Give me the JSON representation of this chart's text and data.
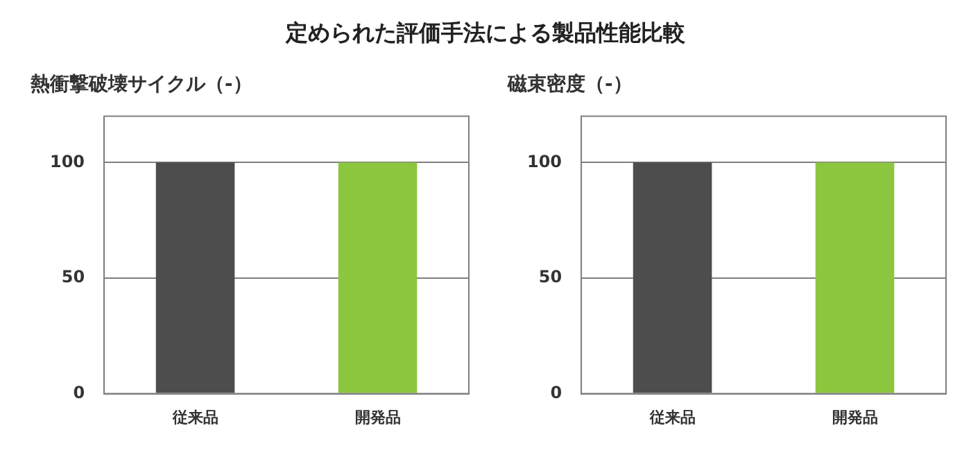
{
  "chart_data": [
    {
      "type": "bar",
      "title": "熱衝撃破壊サイクル（-）",
      "annotations": [
        "定められた評価手法による製品性能比較"
      ],
      "categories": [
        "従来品",
        "開発品"
      ],
      "values": [
        100,
        100
      ],
      "colors": [
        "#4d4d4d",
        "#8cc63e"
      ],
      "ylim": [
        0,
        120
      ],
      "yticks": [
        0,
        50,
        100
      ],
      "grid": "y",
      "legend": false
    },
    {
      "type": "bar",
      "title": "磁束密度（-）",
      "categories": [
        "従来品",
        "開発品"
      ],
      "values": [
        100,
        100
      ],
      "colors": [
        "#4d4d4d",
        "#8cc63e"
      ],
      "ylim": [
        0,
        120
      ],
      "yticks": [
        0,
        50,
        100
      ],
      "grid": "y",
      "legend": false
    }
  ]
}
